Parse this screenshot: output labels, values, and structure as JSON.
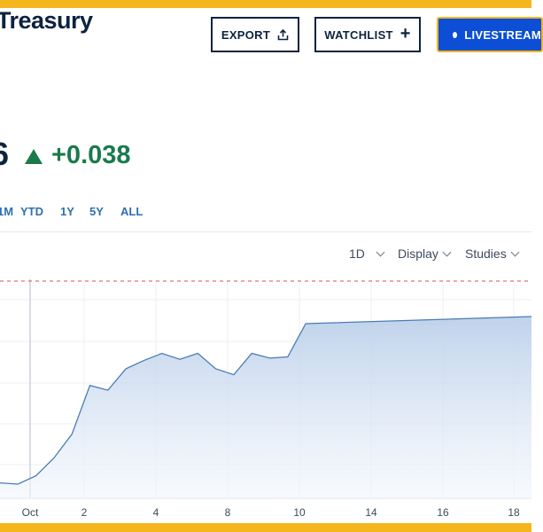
{
  "header": {
    "brand": "Treasury",
    "buttons": {
      "export": "EXPORT",
      "watchlist": "WATCHLIST",
      "livestream": "LIVESTREAM"
    }
  },
  "quote": {
    "price_fragment": "6",
    "change": "+0.038",
    "change_color": "#1a7a4c"
  },
  "ranges": [
    "1M",
    "YTD",
    "1Y",
    "5Y",
    "ALL"
  ],
  "toolbar": {
    "interval": "1D",
    "display": "Display",
    "studies": "Studies"
  },
  "chart_data": {
    "type": "area",
    "x_ticks": [
      "Oct",
      "2",
      "4",
      "8",
      "10",
      "14",
      "16",
      "18"
    ],
    "series": [
      {
        "values": [
          4,
          3,
          10,
          25,
          45,
          86,
          82,
          100,
          107,
          113,
          108,
          113,
          100,
          95,
          113,
          109,
          110,
          138
        ]
      }
    ],
    "reference_line": {
      "style": "dashed",
      "color": "#d9534f"
    },
    "grid": true,
    "line_color": "#4a7cb5",
    "fill_color": "#c9d8ee"
  }
}
